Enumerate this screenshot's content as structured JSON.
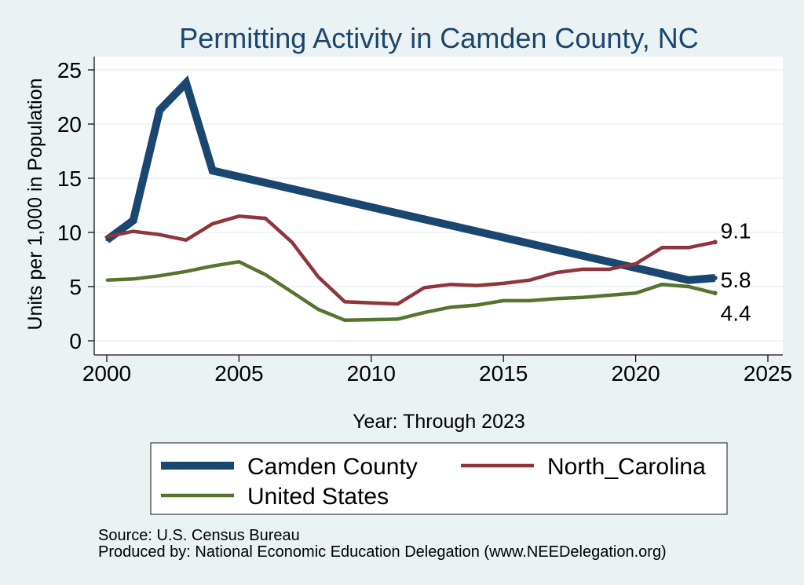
{
  "chart_data": {
    "type": "line",
    "title": "Permitting Activity in Camden County, NC",
    "xlabel": "Year: Through 2023",
    "ylabel": "Units per 1,000 in Population",
    "xlim": [
      2000,
      2025
    ],
    "ylim": [
      0,
      25
    ],
    "xticks": [
      2000,
      2005,
      2010,
      2015,
      2020,
      2025
    ],
    "yticks": [
      0,
      5,
      10,
      15,
      20,
      25
    ],
    "grid": true,
    "legend": "bottom",
    "series": [
      {
        "name": "Camden County",
        "color": "#1a476f",
        "x": [
          2000,
          2001,
          2002,
          2003,
          2004,
          2022,
          2023
        ],
        "values": [
          9.3,
          11.1,
          21.3,
          23.8,
          15.7,
          5.6,
          5.8
        ],
        "end_label": "5.8"
      },
      {
        "name": "North_Carolina",
        "color": "#90353b",
        "x": [
          2000,
          2001,
          2002,
          2003,
          2004,
          2005,
          2006,
          2007,
          2008,
          2009,
          2010,
          2011,
          2012,
          2013,
          2014,
          2015,
          2016,
          2017,
          2018,
          2019,
          2020,
          2021,
          2022,
          2023
        ],
        "values": [
          9.6,
          10.1,
          9.8,
          9.3,
          10.8,
          11.5,
          11.3,
          9.1,
          5.9,
          3.6,
          3.5,
          3.4,
          4.9,
          5.2,
          5.1,
          5.3,
          5.6,
          6.3,
          6.6,
          6.6,
          7.1,
          8.6,
          8.6,
          9.1
        ],
        "end_label": "9.1"
      },
      {
        "name": "United States",
        "color": "#55752f",
        "x": [
          2000,
          2001,
          2002,
          2003,
          2004,
          2005,
          2006,
          2007,
          2008,
          2009,
          2010,
          2011,
          2012,
          2013,
          2014,
          2015,
          2016,
          2017,
          2018,
          2019,
          2020,
          2021,
          2022,
          2023
        ],
        "values": [
          5.6,
          5.7,
          6.0,
          6.4,
          6.9,
          7.3,
          6.1,
          4.5,
          2.9,
          1.9,
          1.95,
          2.0,
          2.6,
          3.1,
          3.3,
          3.7,
          3.7,
          3.9,
          4.0,
          4.2,
          4.4,
          5.2,
          5.0,
          4.4
        ],
        "end_label": "4.4"
      }
    ]
  },
  "notes": {
    "source": "Source: U.S. Census Bureau",
    "produced_by": "Produced by: National Economic Education Delegation (www.NEEDelegation.org)"
  },
  "colors": {
    "background": "#eaf2f3",
    "plot_background": "#ffffff",
    "title": "#1a476f",
    "grid": "#e4edef",
    "axis": "#111111"
  }
}
